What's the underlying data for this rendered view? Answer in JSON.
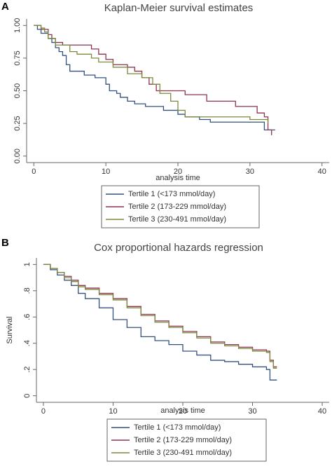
{
  "chart_data": [
    {
      "type": "step",
      "panel": "A",
      "title": "Kaplan-Meier survival estimates",
      "xlabel": "analysis time",
      "xlim": [
        -1,
        41
      ],
      "ylim": [
        -0.05,
        1.05
      ],
      "xticks": [
        0,
        10,
        20,
        30,
        40
      ],
      "yticks": [
        {
          "value": 0,
          "label": "0.00"
        },
        {
          "value": 0.25,
          "label": "0.25"
        },
        {
          "value": 0.5,
          "label": "0.50"
        },
        {
          "value": 0.75,
          "label": "0.75"
        },
        {
          "value": 1,
          "label": "1.00"
        }
      ],
      "grid": false,
      "legend": "bottom",
      "series": [
        {
          "name": "Tertile 1 (<173 mmol/day)",
          "color": "#34507f",
          "x": [
            0,
            0.5,
            1,
            2,
            2.5,
            3,
            3.5,
            4,
            4.5,
            5,
            7,
            8.5,
            10,
            10.5,
            11.5,
            12,
            13,
            14,
            15.5,
            18,
            20,
            21,
            23,
            24.5,
            32,
            33.5
          ],
          "values": [
            1,
            0.97,
            0.94,
            0.9,
            0.87,
            0.83,
            0.8,
            0.77,
            0.7,
            0.65,
            0.62,
            0.6,
            0.55,
            0.5,
            0.48,
            0.45,
            0.42,
            0.4,
            0.38,
            0.35,
            0.32,
            0.3,
            0.28,
            0.26,
            0.2,
            0.2
          ]
        },
        {
          "name": "Tertile 2 (173-229 mmol/day)",
          "color": "#8e3350",
          "x": [
            0,
            1,
            2,
            2.5,
            3,
            4,
            8,
            9,
            10,
            11,
            13,
            14,
            15,
            16,
            17,
            21,
            24,
            28,
            31,
            32,
            32.5,
            33
          ],
          "values": [
            1,
            0.97,
            0.93,
            0.9,
            0.87,
            0.85,
            0.82,
            0.78,
            0.74,
            0.7,
            0.68,
            0.65,
            0.6,
            0.55,
            0.5,
            0.47,
            0.42,
            0.38,
            0.33,
            0.3,
            0.2,
            0.16
          ]
        },
        {
          "name": "Tertile 3 (230-491 mmol/day)",
          "color": "#7b8a3c",
          "x": [
            0,
            1,
            1.5,
            2,
            3,
            5,
            6,
            8,
            9,
            11,
            13,
            15,
            16.5,
            17.5,
            19,
            20,
            21,
            30,
            32.5
          ],
          "values": [
            1,
            0.98,
            0.95,
            0.9,
            0.85,
            0.8,
            0.78,
            0.75,
            0.72,
            0.68,
            0.63,
            0.6,
            0.55,
            0.48,
            0.42,
            0.35,
            0.3,
            0.28,
            0.25
          ]
        }
      ]
    },
    {
      "type": "step",
      "panel": "B",
      "title": "Cox proportional hazards regression",
      "xlabel": "analysis time",
      "ylabel": "Survival",
      "xlim": [
        -1,
        41
      ],
      "ylim": [
        -0.05,
        1.05
      ],
      "xticks": [
        0,
        10,
        20,
        30,
        40
      ],
      "yticks": [
        0,
        {
          "value": 0.2,
          "label": ".2"
        },
        {
          "value": 0.4,
          "label": ".4"
        },
        {
          "value": 0.6,
          "label": ".6"
        },
        {
          "value": 0.8,
          "label": ".8"
        },
        1
      ],
      "grid": false,
      "legend": "bottom",
      "series": [
        {
          "name": "Tertile 1 (<173 mmol/day)",
          "color": "#34507f",
          "x": [
            0,
            1,
            2,
            3,
            4,
            5,
            6,
            8,
            10,
            12,
            14,
            16,
            18,
            20,
            22,
            24,
            26,
            28,
            30,
            32,
            32.5,
            33.5
          ],
          "values": [
            1,
            0.96,
            0.92,
            0.88,
            0.84,
            0.78,
            0.74,
            0.67,
            0.58,
            0.52,
            0.45,
            0.42,
            0.39,
            0.34,
            0.31,
            0.27,
            0.26,
            0.24,
            0.22,
            0.2,
            0.12,
            0.12
          ]
        },
        {
          "name": "Tertile 2 (173-229 mmol/day)",
          "color": "#8e3350",
          "x": [
            0,
            1,
            2,
            3,
            4,
            5,
            6,
            8,
            10,
            12,
            14,
            16,
            18,
            20,
            22,
            24,
            26,
            28,
            30,
            32,
            32.5,
            33,
            33.5
          ],
          "values": [
            1,
            0.97,
            0.94,
            0.91,
            0.88,
            0.84,
            0.82,
            0.78,
            0.74,
            0.68,
            0.62,
            0.57,
            0.53,
            0.49,
            0.45,
            0.41,
            0.39,
            0.37,
            0.35,
            0.34,
            0.27,
            0.22,
            0.22
          ]
        },
        {
          "name": "Tertile 3 (230-491 mmol/day)",
          "color": "#7b8a3c",
          "x": [
            0,
            1,
            2,
            3,
            4,
            5,
            6,
            8,
            10,
            12,
            14,
            16,
            18,
            20,
            22,
            24,
            26,
            28,
            30,
            32,
            32.5,
            33,
            33.5
          ],
          "values": [
            1,
            0.97,
            0.94,
            0.9,
            0.87,
            0.83,
            0.81,
            0.77,
            0.73,
            0.67,
            0.61,
            0.56,
            0.52,
            0.48,
            0.44,
            0.4,
            0.38,
            0.36,
            0.34,
            0.33,
            0.26,
            0.21,
            0.21
          ]
        }
      ]
    }
  ]
}
